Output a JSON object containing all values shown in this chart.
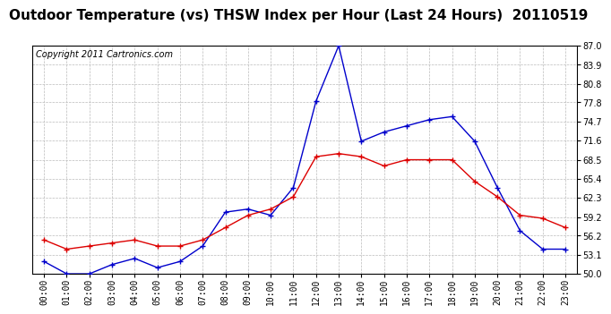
{
  "title": "Outdoor Temperature (vs) THSW Index per Hour (Last 24 Hours)  20110519",
  "copyright": "Copyright 2011 Cartronics.com",
  "hours": [
    "00:00",
    "01:00",
    "02:00",
    "03:00",
    "04:00",
    "05:00",
    "06:00",
    "07:00",
    "08:00",
    "09:00",
    "10:00",
    "11:00",
    "12:00",
    "13:00",
    "14:00",
    "15:00",
    "16:00",
    "17:00",
    "18:00",
    "19:00",
    "20:00",
    "21:00",
    "22:00",
    "23:00"
  ],
  "temp_red": [
    55.5,
    54.0,
    54.5,
    55.0,
    55.5,
    54.5,
    54.5,
    55.5,
    57.5,
    59.5,
    60.5,
    62.5,
    69.0,
    69.5,
    69.0,
    67.5,
    68.5,
    68.5,
    68.5,
    65.0,
    62.5,
    59.5,
    59.0,
    57.5
  ],
  "thsw_blue": [
    52.0,
    50.0,
    50.0,
    51.5,
    52.5,
    51.0,
    52.0,
    54.5,
    60.0,
    60.5,
    59.5,
    64.0,
    78.0,
    87.0,
    71.5,
    73.0,
    74.0,
    75.0,
    75.5,
    71.5,
    64.0,
    57.0,
    54.0,
    54.0
  ],
  "ylim": [
    50.0,
    87.0
  ],
  "yticks": [
    50.0,
    53.1,
    56.2,
    59.2,
    62.3,
    65.4,
    68.5,
    71.6,
    74.7,
    77.8,
    80.8,
    83.9,
    87.0
  ],
  "bg_color": "#ffffff",
  "plot_bg": "#ffffff",
  "grid_color": "#bbbbbb",
  "red_color": "#dd0000",
  "blue_color": "#0000cc",
  "title_fontsize": 11,
  "copyright_fontsize": 7,
  "tick_fontsize": 7
}
